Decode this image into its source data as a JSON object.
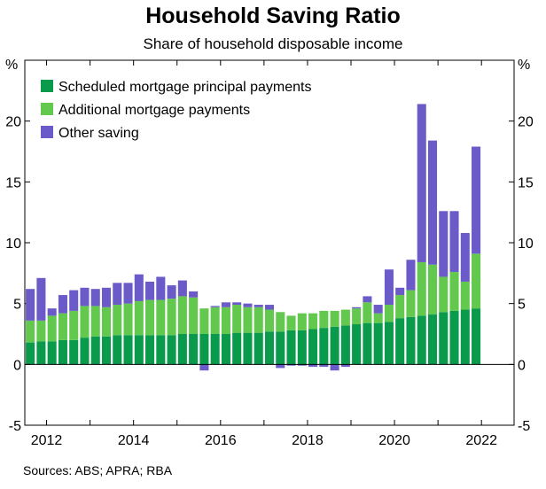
{
  "title": "Household Saving Ratio",
  "subtitle": "Share of household disposable income",
  "source": "Sources: ABS; APRA; RBA",
  "colors": {
    "scheduled": "#0a9a4c",
    "additional": "#63c94e",
    "other": "#6b5bc8",
    "axis": "#000000",
    "zero_line": "#000000"
  },
  "chart_data": {
    "type": "bar",
    "stacked": true,
    "unit_left": "%",
    "unit_right": "%",
    "ylim": [
      -5,
      25
    ],
    "y_ticks": [
      -5,
      0,
      5,
      10,
      15,
      20
    ],
    "x_tick_labels": [
      "2012",
      "2014",
      "2016",
      "2018",
      "2020",
      "2022"
    ],
    "x_tick_years": [
      2012,
      2014,
      2016,
      2018,
      2020,
      2022
    ],
    "x_range": [
      2011.5,
      2022.75
    ],
    "grid": false,
    "legend_position": "top-left",
    "periods": [
      "2011-Q3",
      "2011-Q4",
      "2012-Q1",
      "2012-Q2",
      "2012-Q3",
      "2012-Q4",
      "2013-Q1",
      "2013-Q2",
      "2013-Q3",
      "2013-Q4",
      "2014-Q1",
      "2014-Q2",
      "2014-Q3",
      "2014-Q4",
      "2015-Q1",
      "2015-Q2",
      "2015-Q3",
      "2015-Q4",
      "2016-Q1",
      "2016-Q2",
      "2016-Q3",
      "2016-Q4",
      "2017-Q1",
      "2017-Q2",
      "2017-Q3",
      "2017-Q4",
      "2018-Q1",
      "2018-Q2",
      "2018-Q3",
      "2018-Q4",
      "2019-Q1",
      "2019-Q2",
      "2019-Q3",
      "2019-Q4",
      "2020-Q1",
      "2020-Q2",
      "2020-Q3",
      "2020-Q4",
      "2021-Q1",
      "2021-Q2",
      "2021-Q3",
      "2021-Q4"
    ],
    "x": [
      2011.625,
      2011.875,
      2012.125,
      2012.375,
      2012.625,
      2012.875,
      2013.125,
      2013.375,
      2013.625,
      2013.875,
      2014.125,
      2014.375,
      2014.625,
      2014.875,
      2015.125,
      2015.375,
      2015.625,
      2015.875,
      2016.125,
      2016.375,
      2016.625,
      2016.875,
      2017.125,
      2017.375,
      2017.625,
      2017.875,
      2018.125,
      2018.375,
      2018.625,
      2018.875,
      2019.125,
      2019.375,
      2019.625,
      2019.875,
      2020.125,
      2020.375,
      2020.625,
      2020.875,
      2021.125,
      2021.375,
      2021.625,
      2021.875
    ],
    "series": [
      {
        "name": "Scheduled mortgage principal payments",
        "color_key": "scheduled",
        "values": [
          1.8,
          1.9,
          1.9,
          2.0,
          2.0,
          2.2,
          2.3,
          2.3,
          2.4,
          2.4,
          2.4,
          2.4,
          2.4,
          2.4,
          2.5,
          2.5,
          2.5,
          2.5,
          2.5,
          2.6,
          2.6,
          2.6,
          2.7,
          2.7,
          2.8,
          2.8,
          2.9,
          3.0,
          3.1,
          3.2,
          3.3,
          3.4,
          3.4,
          3.5,
          3.8,
          3.9,
          4.0,
          4.1,
          4.3,
          4.4,
          4.5,
          4.6
        ]
      },
      {
        "name": "Additional mortgage payments",
        "color_key": "additional",
        "values": [
          1.8,
          1.7,
          2.1,
          2.2,
          2.4,
          2.6,
          2.5,
          2.4,
          2.5,
          2.6,
          2.8,
          2.9,
          2.9,
          3.0,
          3.1,
          3.0,
          2.1,
          2.2,
          2.2,
          2.3,
          2.1,
          2.1,
          1.8,
          1.6,
          1.2,
          1.4,
          1.3,
          1.4,
          1.3,
          1.3,
          1.3,
          1.7,
          0.8,
          1.4,
          1.9,
          2.2,
          4.4,
          4.1,
          2.9,
          3.2,
          2.3,
          4.5
        ]
      },
      {
        "name": "Other saving",
        "color_key": "other",
        "values": [
          2.6,
          3.5,
          0.6,
          1.5,
          1.7,
          1.5,
          1.4,
          1.6,
          1.8,
          1.7,
          2.2,
          1.5,
          1.9,
          1.1,
          1.3,
          0.5,
          -0.5,
          0.1,
          0.4,
          0.2,
          0.3,
          0.2,
          0.4,
          -0.3,
          -0.1,
          -0.1,
          -0.2,
          -0.2,
          -0.5,
          -0.2,
          0.1,
          0.5,
          0.7,
          2.9,
          0.6,
          2.5,
          13.0,
          10.2,
          5.4,
          5.0,
          4.0,
          8.8
        ]
      }
    ]
  }
}
